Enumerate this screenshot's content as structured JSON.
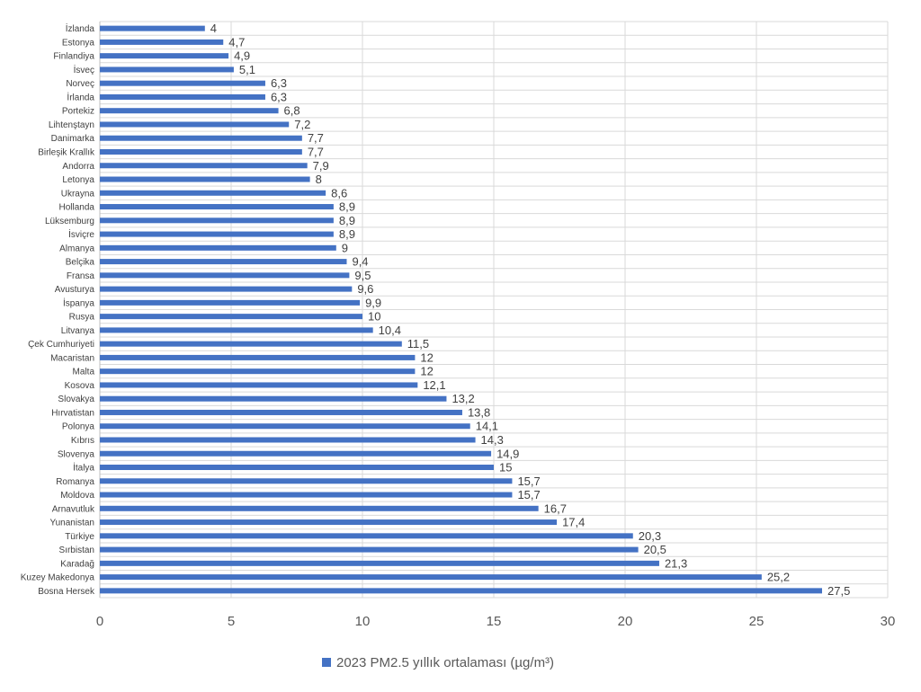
{
  "chart_data": {
    "type": "bar",
    "orientation": "horizontal",
    "categories": [
      "İzlanda",
      "Estonya",
      "Finlandiya",
      "İsveç",
      "Norveç",
      "İrlanda",
      "Portekiz",
      "Lihtenştayn",
      "Danimarka",
      "Birleşik Krallık",
      "Andorra",
      "Letonya",
      "Ukrayna",
      "Hollanda",
      "Lüksemburg",
      "İsviçre",
      "Almanya",
      "Belçika",
      "Fransa",
      "Avusturya",
      "İspanya",
      "Rusya",
      "Litvanya",
      "Çek Cumhuriyeti",
      "Macaristan",
      "Malta",
      "Kosova",
      "Slovakya",
      "Hırvatistan",
      "Polonya",
      "Kıbrıs",
      "Slovenya",
      "İtalya",
      "Romanya",
      "Moldova",
      "Arnavutluk",
      "Yunanistan",
      "Türkiye",
      "Sırbistan",
      "Karadağ",
      "Kuzey Makedonya",
      "Bosna Hersek"
    ],
    "values": [
      4,
      4.7,
      4.9,
      5.1,
      6.3,
      6.3,
      6.8,
      7.2,
      7.7,
      7.7,
      7.9,
      8,
      8.6,
      8.9,
      8.9,
      8.9,
      9,
      9.4,
      9.5,
      9.6,
      9.9,
      10,
      10.4,
      11.5,
      12,
      12,
      12.1,
      13.2,
      13.8,
      14.1,
      14.3,
      14.9,
      15,
      15.7,
      15.7,
      16.7,
      17.4,
      20.3,
      20.5,
      21.3,
      25.2,
      27.5
    ],
    "value_labels": [
      "4",
      "4,7",
      "4,9",
      "5,1",
      "6,3",
      "6,3",
      "6,8",
      "7,2",
      "7,7",
      "7,7",
      "7,9",
      "8",
      "8,6",
      "8,9",
      "8,9",
      "8,9",
      "9",
      "9,4",
      "9,5",
      "9,6",
      "9,9",
      "10",
      "10,4",
      "11,5",
      "12",
      "12",
      "12,1",
      "13,2",
      "13,8",
      "14,1",
      "14,3",
      "14,9",
      "15",
      "15,7",
      "15,7",
      "16,7",
      "17,4",
      "20,3",
      "20,5",
      "21,3",
      "25,2",
      "27,5"
    ],
    "series": [
      {
        "name": "2023 PM2.5 yıllık ortalaması (µg/m³)"
      }
    ],
    "xticks": [
      "0",
      "5",
      "10",
      "15",
      "20",
      "25",
      "30"
    ],
    "xlim": [
      0,
      30
    ],
    "grid": true,
    "legend_position": "bottom",
    "bar_color": "#4472C4"
  }
}
